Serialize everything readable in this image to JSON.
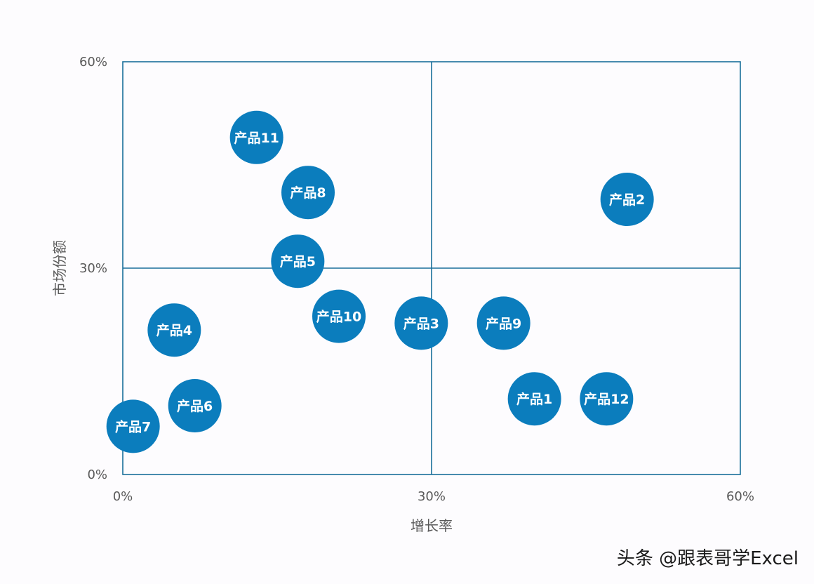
{
  "chart_data": {
    "type": "scatter",
    "xlabel": "增长率",
    "ylabel": "市场份额",
    "xlim": [
      0,
      0.6
    ],
    "ylim": [
      0,
      0.6
    ],
    "x_ticks": [
      "0%",
      "30%",
      "60%"
    ],
    "y_ticks": [
      "0%",
      "30%",
      "60%"
    ],
    "quadrant_divider": {
      "x": 0.3,
      "y": 0.3
    },
    "grid": false,
    "legend": "none",
    "bubble_color": "#0b7dbd",
    "frame_color": "#1a6f9a",
    "points": [
      {
        "label": "产品1",
        "x": 0.4,
        "y": 0.11
      },
      {
        "label": "产品2",
        "x": 0.49,
        "y": 0.4
      },
      {
        "label": "产品3",
        "x": 0.29,
        "y": 0.22
      },
      {
        "label": "产品4",
        "x": 0.05,
        "y": 0.21
      },
      {
        "label": "产品5",
        "x": 0.17,
        "y": 0.31
      },
      {
        "label": "产品6",
        "x": 0.07,
        "y": 0.1
      },
      {
        "label": "产品7",
        "x": 0.01,
        "y": 0.07
      },
      {
        "label": "产品8",
        "x": 0.18,
        "y": 0.41
      },
      {
        "label": "产品9",
        "x": 0.37,
        "y": 0.22
      },
      {
        "label": "产品10",
        "x": 0.21,
        "y": 0.23
      },
      {
        "label": "产品11",
        "x": 0.13,
        "y": 0.49
      },
      {
        "label": "产品12",
        "x": 0.47,
        "y": 0.11
      }
    ]
  },
  "watermark": "头条 @跟表哥学Excel"
}
